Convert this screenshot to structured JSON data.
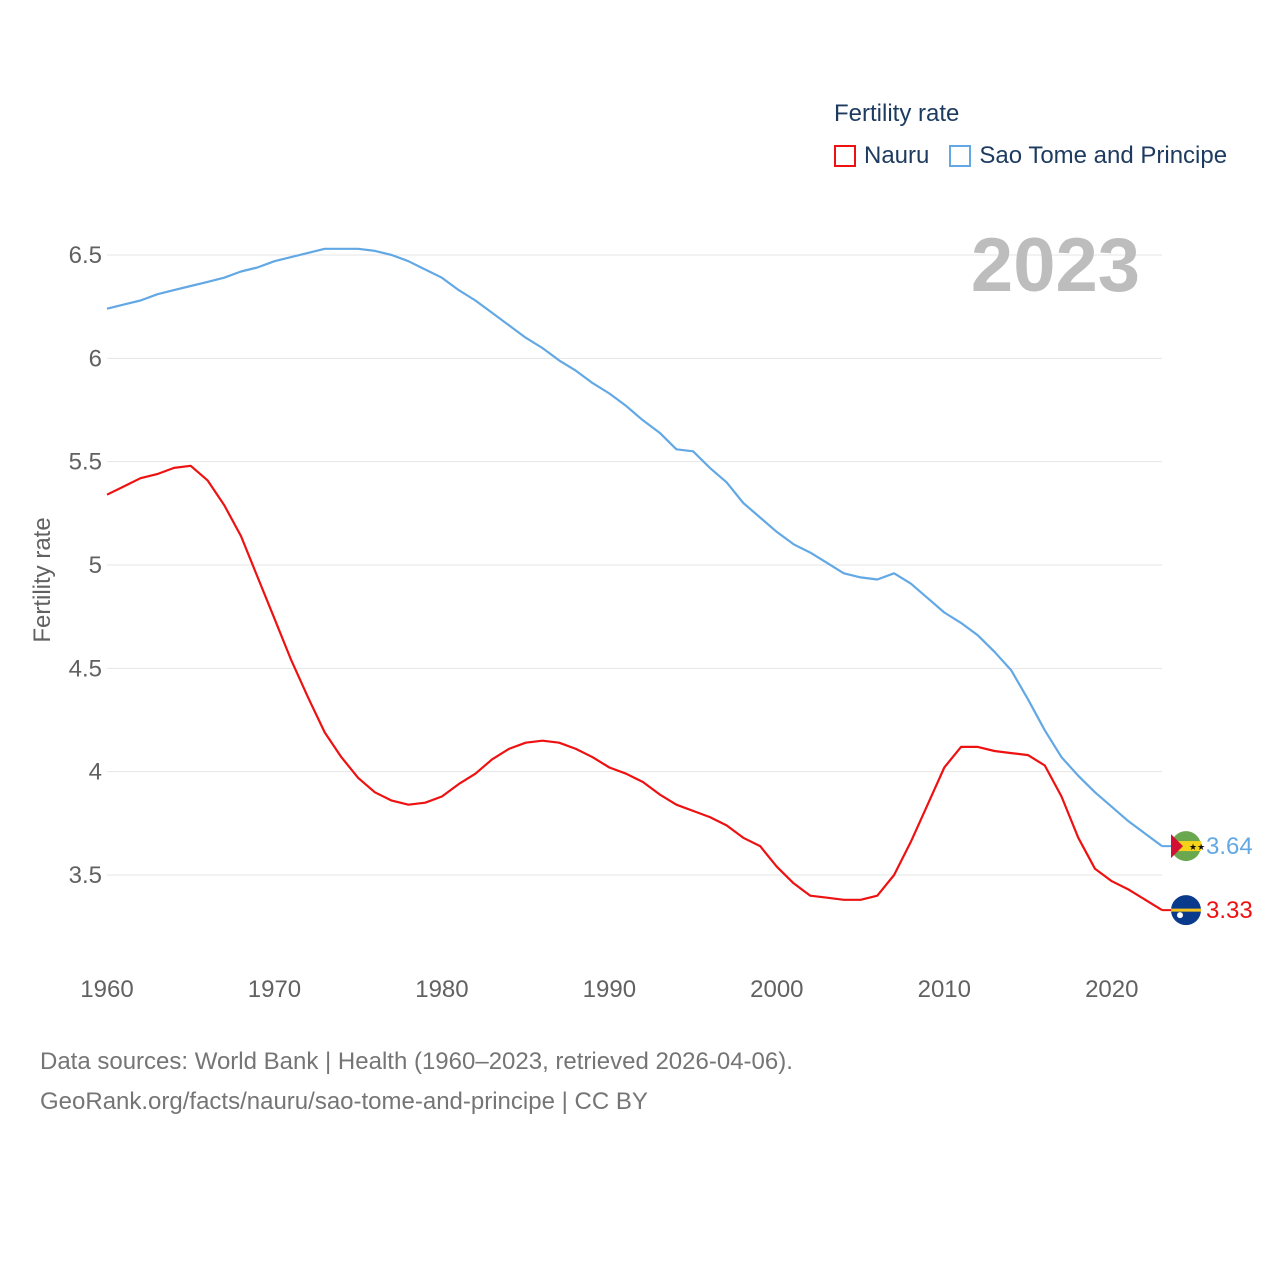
{
  "legend": {
    "title": "Fertility rate",
    "items": [
      {
        "label": "Nauru",
        "color": "#ee1111"
      },
      {
        "label": "Sao Tome and Principe",
        "color": "#62a8e5"
      }
    ]
  },
  "year_label": "2023",
  "footer": {
    "line1": "Data sources: World Bank | Health (1960–2023, retrieved 2026-04-06).",
    "line2": "GeoRank.org/facts/nauru/sao-tome-and-principe | CC BY"
  },
  "chart_data": {
    "type": "line",
    "title": "Fertility rate",
    "xlabel": "",
    "ylabel": "Fertility rate",
    "xlim": [
      1960,
      2023
    ],
    "ylim": [
      3.1,
      6.7
    ],
    "xticks": [
      1960,
      1970,
      1980,
      1990,
      2000,
      2010,
      2020
    ],
    "yticks": [
      3.5,
      4,
      4.5,
      5,
      5.5,
      6,
      6.5
    ],
    "ytick_labels": [
      "3.5",
      "4",
      "4.5",
      "5",
      "5.5",
      "6",
      "6.5"
    ],
    "grid": true,
    "x": [
      1960,
      1961,
      1962,
      1963,
      1964,
      1965,
      1966,
      1967,
      1968,
      1969,
      1970,
      1971,
      1972,
      1973,
      1974,
      1975,
      1976,
      1977,
      1978,
      1979,
      1980,
      1981,
      1982,
      1983,
      1984,
      1985,
      1986,
      1987,
      1988,
      1989,
      1990,
      1991,
      1992,
      1993,
      1994,
      1995,
      1996,
      1997,
      1998,
      1999,
      2000,
      2001,
      2002,
      2003,
      2004,
      2005,
      2006,
      2007,
      2008,
      2009,
      2010,
      2011,
      2012,
      2013,
      2014,
      2015,
      2016,
      2017,
      2018,
      2019,
      2020,
      2021,
      2022,
      2023
    ],
    "series": [
      {
        "name": "Nauru",
        "color": "#ee1111",
        "end_label": "3.33",
        "values": [
          5.34,
          5.38,
          5.42,
          5.44,
          5.47,
          5.48,
          5.41,
          5.29,
          5.14,
          4.94,
          4.74,
          4.54,
          4.36,
          4.19,
          4.07,
          3.97,
          3.9,
          3.86,
          3.84,
          3.85,
          3.88,
          3.94,
          3.99,
          4.06,
          4.11,
          4.14,
          4.15,
          4.14,
          4.11,
          4.07,
          4.02,
          3.99,
          3.95,
          3.89,
          3.84,
          3.81,
          3.78,
          3.74,
          3.68,
          3.64,
          3.54,
          3.46,
          3.4,
          3.39,
          3.38,
          3.38,
          3.4,
          3.5,
          3.66,
          3.84,
          4.02,
          4.12,
          4.12,
          4.1,
          4.09,
          4.08,
          4.03,
          3.88,
          3.68,
          3.53,
          3.47,
          3.43,
          3.38,
          3.33
        ]
      },
      {
        "name": "Sao Tome and Principe",
        "color": "#62a8e5",
        "end_label": "3.64",
        "values": [
          6.24,
          6.26,
          6.28,
          6.31,
          6.33,
          6.35,
          6.37,
          6.39,
          6.42,
          6.44,
          6.47,
          6.49,
          6.51,
          6.53,
          6.53,
          6.53,
          6.52,
          6.5,
          6.47,
          6.43,
          6.39,
          6.33,
          6.28,
          6.22,
          6.16,
          6.1,
          6.05,
          5.99,
          5.94,
          5.88,
          5.83,
          5.77,
          5.7,
          5.64,
          5.56,
          5.55,
          5.47,
          5.4,
          5.3,
          5.23,
          5.16,
          5.1,
          5.06,
          5.01,
          4.96,
          4.94,
          4.93,
          4.96,
          4.91,
          4.84,
          4.77,
          4.72,
          4.66,
          4.58,
          4.49,
          4.35,
          4.2,
          4.07,
          3.98,
          3.9,
          3.83,
          3.76,
          3.7,
          3.64
        ]
      }
    ]
  }
}
